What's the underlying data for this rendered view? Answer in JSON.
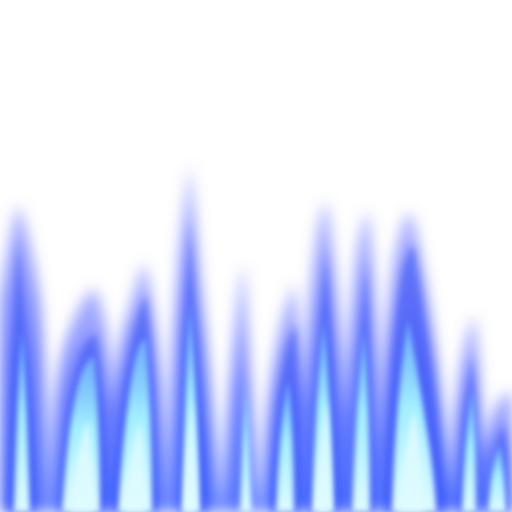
{
  "scene": {
    "subject": "flames",
    "background_color": "#ffffff",
    "colors": {
      "outer_glow": "#5a6cff",
      "mid_glow": "#3f63ff",
      "edge_blue": "#2f4df2",
      "core_cyan": "#a7f6ff",
      "core_bright": "#dffcff"
    }
  }
}
